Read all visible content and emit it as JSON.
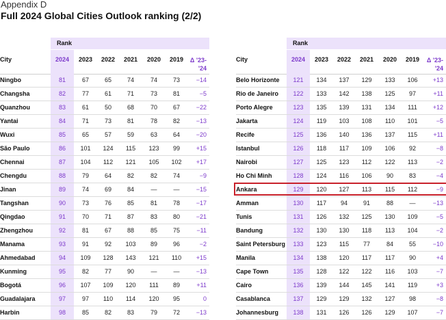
{
  "header": {
    "eyebrow": "Appendix D",
    "title": "Full 2024 Global Cities Outlook ranking (2/2)"
  },
  "table": {
    "rank_label": "Rank",
    "city_label": "City",
    "columns": [
      "2024",
      "2023",
      "2022",
      "2021",
      "2020",
      "2019"
    ],
    "delta_label_1": "Δ '23-",
    "delta_label_2": "'24"
  },
  "left_rows": [
    {
      "city": "Ningbo",
      "v": [
        "81",
        "67",
        "65",
        "74",
        "74",
        "73"
      ],
      "d": "−14"
    },
    {
      "city": "Changsha",
      "v": [
        "82",
        "77",
        "61",
        "71",
        "73",
        "81"
      ],
      "d": "−5"
    },
    {
      "city": "Quanzhou",
      "v": [
        "83",
        "61",
        "50",
        "68",
        "70",
        "67"
      ],
      "d": "−22"
    },
    {
      "city": "Yantai",
      "v": [
        "84",
        "71",
        "73",
        "81",
        "78",
        "82"
      ],
      "d": "−13"
    },
    {
      "city": "Wuxi",
      "v": [
        "85",
        "65",
        "57",
        "59",
        "63",
        "64"
      ],
      "d": "−20"
    },
    {
      "city": "São Paulo",
      "v": [
        "86",
        "101",
        "124",
        "115",
        "123",
        "99"
      ],
      "d": "+15"
    },
    {
      "city": "Chennai",
      "v": [
        "87",
        "104",
        "112",
        "121",
        "105",
        "102"
      ],
      "d": "+17"
    },
    {
      "city": "Chengdu",
      "v": [
        "88",
        "79",
        "64",
        "82",
        "82",
        "74"
      ],
      "d": "−9"
    },
    {
      "city": "Jinan",
      "v": [
        "89",
        "74",
        "69",
        "84",
        "—",
        "—"
      ],
      "d": "−15"
    },
    {
      "city": "Tangshan",
      "v": [
        "90",
        "73",
        "76",
        "85",
        "81",
        "78"
      ],
      "d": "−17"
    },
    {
      "city": "Qingdao",
      "v": [
        "91",
        "70",
        "71",
        "87",
        "83",
        "80"
      ],
      "d": "−21"
    },
    {
      "city": "Zhengzhou",
      "v": [
        "92",
        "81",
        "67",
        "88",
        "85",
        "75"
      ],
      "d": "−11"
    },
    {
      "city": "Manama",
      "v": [
        "93",
        "91",
        "92",
        "103",
        "89",
        "96"
      ],
      "d": "−2"
    },
    {
      "city": "Ahmedabad",
      "v": [
        "94",
        "109",
        "128",
        "143",
        "121",
        "110"
      ],
      "d": "+15"
    },
    {
      "city": "Kunming",
      "v": [
        "95",
        "82",
        "77",
        "90",
        "—",
        "—"
      ],
      "d": "−13"
    },
    {
      "city": "Bogotá",
      "v": [
        "96",
        "107",
        "109",
        "120",
        "111",
        "89"
      ],
      "d": "+11"
    },
    {
      "city": "Guadalajara",
      "v": [
        "97",
        "97",
        "110",
        "114",
        "120",
        "95"
      ],
      "d": "0"
    },
    {
      "city": "Harbin",
      "v": [
        "98",
        "85",
        "82",
        "83",
        "79",
        "72"
      ],
      "d": "−13"
    }
  ],
  "right_rows": [
    {
      "city": "Belo Horizonte",
      "v": [
        "121",
        "134",
        "137",
        "129",
        "133",
        "106"
      ],
      "d": "+13"
    },
    {
      "city": "Rio de Janeiro",
      "v": [
        "122",
        "133",
        "142",
        "138",
        "125",
        "97"
      ],
      "d": "+11"
    },
    {
      "city": "Porto Alegre",
      "v": [
        "123",
        "135",
        "139",
        "131",
        "134",
        "111"
      ],
      "d": "+12"
    },
    {
      "city": "Jakarta",
      "v": [
        "124",
        "119",
        "103",
        "108",
        "110",
        "101"
      ],
      "d": "−5"
    },
    {
      "city": "Recife",
      "v": [
        "125",
        "136",
        "140",
        "136",
        "137",
        "115"
      ],
      "d": "+11"
    },
    {
      "city": "Istanbul",
      "v": [
        "126",
        "118",
        "117",
        "109",
        "106",
        "92"
      ],
      "d": "−8"
    },
    {
      "city": "Nairobi",
      "v": [
        "127",
        "125",
        "123",
        "112",
        "122",
        "113"
      ],
      "d": "−2"
    },
    {
      "city": "Ho Chi Minh",
      "v": [
        "128",
        "124",
        "116",
        "106",
        "90",
        "83"
      ],
      "d": "−4"
    },
    {
      "city": "Ankara",
      "v": [
        "129",
        "120",
        "127",
        "113",
        "115",
        "112"
      ],
      "d": "−9"
    },
    {
      "city": "Amman",
      "v": [
        "130",
        "117",
        "94",
        "91",
        "88",
        "—"
      ],
      "d": "−13"
    },
    {
      "city": "Tunis",
      "v": [
        "131",
        "126",
        "132",
        "125",
        "130",
        "109"
      ],
      "d": "−5"
    },
    {
      "city": "Bandung",
      "v": [
        "132",
        "130",
        "130",
        "118",
        "113",
        "104"
      ],
      "d": "−2"
    },
    {
      "city": "Saint Petersburg",
      "v": [
        "133",
        "123",
        "115",
        "77",
        "84",
        "55"
      ],
      "d": "−10"
    },
    {
      "city": "Manila",
      "v": [
        "134",
        "138",
        "120",
        "117",
        "117",
        "90"
      ],
      "d": "+4"
    },
    {
      "city": "Cape Town",
      "v": [
        "135",
        "128",
        "122",
        "122",
        "116",
        "103"
      ],
      "d": "−7"
    },
    {
      "city": "Cairo",
      "v": [
        "136",
        "139",
        "144",
        "145",
        "141",
        "119"
      ],
      "d": "+3"
    },
    {
      "city": "Casablanca",
      "v": [
        "137",
        "129",
        "129",
        "132",
        "127",
        "98"
      ],
      "d": "−8"
    },
    {
      "city": "Johannesburg",
      "v": [
        "138",
        "131",
        "126",
        "126",
        "129",
        "107"
      ],
      "d": "−7"
    }
  ],
  "highlighted_city": "Ankara"
}
